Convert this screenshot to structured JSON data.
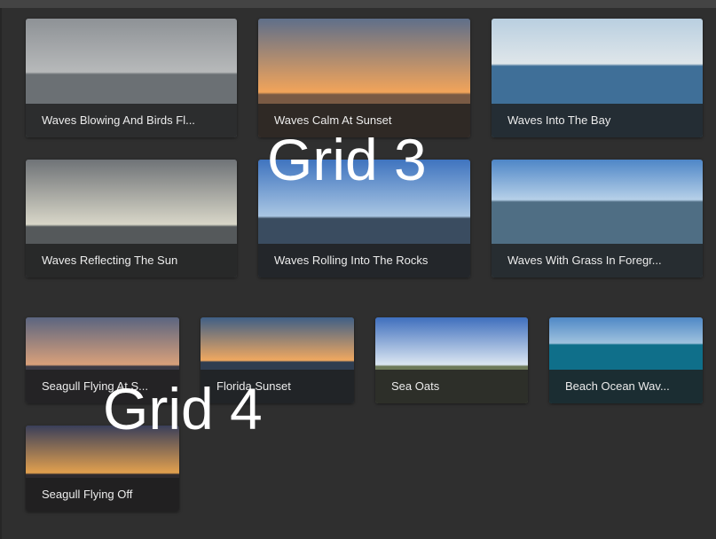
{
  "grid3": {
    "label": "Grid 3",
    "items": [
      {
        "title": "Waves Blowing And Birds Fl...",
        "sky_top": "#8e9296",
        "sky_bottom": "#b7b9ba",
        "sea": "#6b7074",
        "horizon": 0.45
      },
      {
        "title": "Waves Calm At Sunset",
        "sky_top": "#5f6f8a",
        "sky_bottom": "#f2a45a",
        "sea": "#7a5a44",
        "horizon": 0.62
      },
      {
        "title": "Waves Into The Bay",
        "sky_top": "#b9cfe0",
        "sky_bottom": "#dfe6ea",
        "sea": "#3f6f98",
        "horizon": 0.38
      },
      {
        "title": "Waves Reflecting The Sun",
        "sky_top": "#6f7377",
        "sky_bottom": "#d8d6c8",
        "sea": "#55595b",
        "horizon": 0.55
      },
      {
        "title": "Waves Rolling Into The Rocks",
        "sky_top": "#3f74bf",
        "sky_bottom": "#a9c6e3",
        "sea": "#3a4c60",
        "horizon": 0.48
      },
      {
        "title": "Waves With Grass In Foregr...",
        "sky_top": "#4e86c7",
        "sky_bottom": "#b6d0e8",
        "sea": "#4f6e84",
        "horizon": 0.34
      }
    ]
  },
  "grid4": {
    "label": "Grid 4",
    "items": [
      {
        "title": "Seagull Flying At S...",
        "sky_top": "#5b6580",
        "sky_bottom": "#d9a07a",
        "sea": "#3c3a44",
        "horizon": 0.55
      },
      {
        "title": "Florida Sunset",
        "sky_top": "#3f5f86",
        "sky_bottom": "#f0a860",
        "sea": "#2f3d50",
        "horizon": 0.5
      },
      {
        "title": "Sea Oats",
        "sky_top": "#3f6fbd",
        "sky_bottom": "#dbe6f2",
        "sea": "#6d7a5a",
        "horizon": 0.55
      },
      {
        "title": "Beach Ocean Wav...",
        "sky_top": "#4f88c6",
        "sky_bottom": "#9fc2de",
        "sea": "#0f6f8a",
        "horizon": 0.3
      },
      {
        "title": "Seagull Flying Off",
        "sky_top": "#3a3f5a",
        "sky_bottom": "#e2a04e",
        "sea": "#2e2a2e",
        "horizon": 0.55
      }
    ]
  }
}
